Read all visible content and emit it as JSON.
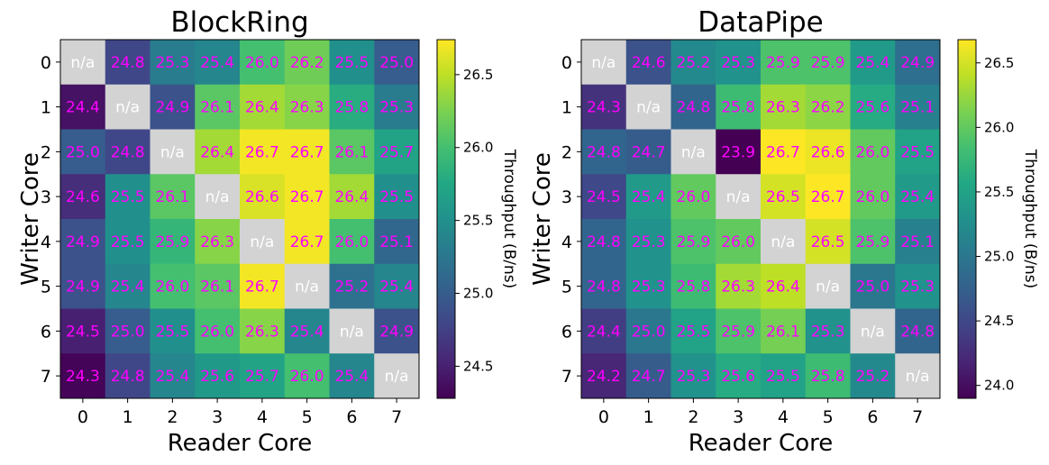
{
  "chart_data": [
    {
      "type": "heatmap",
      "title": "BlockRing",
      "xlabel": "Reader Core",
      "ylabel": "Writer Core",
      "x_categories": [
        "0",
        "1",
        "2",
        "3",
        "4",
        "5",
        "6",
        "7"
      ],
      "y_categories": [
        "0",
        "1",
        "2",
        "3",
        "4",
        "5",
        "6",
        "7"
      ],
      "values": [
        [
          null,
          24.8,
          25.3,
          25.4,
          26.0,
          26.2,
          25.5,
          25.0
        ],
        [
          24.4,
          null,
          24.9,
          26.1,
          26.4,
          26.3,
          25.8,
          25.3
        ],
        [
          25.0,
          24.8,
          null,
          26.4,
          26.7,
          26.7,
          26.1,
          25.7
        ],
        [
          24.6,
          25.5,
          26.1,
          null,
          26.6,
          26.7,
          26.4,
          25.5
        ],
        [
          24.9,
          25.5,
          25.9,
          26.3,
          null,
          26.7,
          26.0,
          25.1
        ],
        [
          24.9,
          25.4,
          26.0,
          26.1,
          26.7,
          null,
          25.2,
          25.4
        ],
        [
          24.5,
          25.0,
          25.5,
          26.0,
          26.3,
          25.4,
          null,
          24.9
        ],
        [
          24.3,
          24.8,
          25.4,
          25.6,
          25.7,
          26.0,
          25.4,
          null
        ]
      ],
      "cell_labels": [
        [
          "n/a",
          "24.8",
          "25.3",
          "25.4",
          "26.0",
          "26.2",
          "25.5",
          "25.0"
        ],
        [
          "24.4",
          "n/a",
          "24.9",
          "26.1",
          "26.4",
          "26.3",
          "25.8",
          "25.3"
        ],
        [
          "25.0",
          "24.8",
          "n/a",
          "26.4",
          "26.7",
          "26.7",
          "26.1",
          "25.7"
        ],
        [
          "24.6",
          "25.5",
          "26.1",
          "n/a",
          "26.6",
          "26.7",
          "26.4",
          "25.5"
        ],
        [
          "24.9",
          "25.5",
          "25.9",
          "26.3",
          "n/a",
          "26.7",
          "26.0",
          "25.1"
        ],
        [
          "24.9",
          "25.4",
          "26.0",
          "26.1",
          "26.7",
          "n/a",
          "25.2",
          "25.4"
        ],
        [
          "24.5",
          "25.0",
          "25.5",
          "26.0",
          "26.3",
          "25.4",
          "n/a",
          "24.9"
        ],
        [
          "24.3",
          "24.8",
          "25.4",
          "25.6",
          "25.7",
          "26.0",
          "25.4",
          "n/a"
        ]
      ],
      "colorbar": {
        "label": "Throughput (B/ns)",
        "range": [
          24.28,
          26.74
        ],
        "ticks": [
          24.5,
          25.0,
          25.5,
          26.0,
          26.5
        ],
        "tick_labels": [
          "24.5",
          "25.0",
          "25.5",
          "26.0",
          "26.5"
        ]
      },
      "colormap": "viridis",
      "na_color": "#d3d3d3",
      "value_label_color": "#ff00ff",
      "na_label_color": "#ffffff"
    },
    {
      "type": "heatmap",
      "title": "DataPipe",
      "xlabel": "Reader Core",
      "ylabel": "Writer Core",
      "x_categories": [
        "0",
        "1",
        "2",
        "3",
        "4",
        "5",
        "6",
        "7"
      ],
      "y_categories": [
        "0",
        "1",
        "2",
        "3",
        "4",
        "5",
        "6",
        "7"
      ],
      "values": [
        [
          null,
          24.6,
          25.2,
          25.3,
          25.9,
          25.9,
          25.4,
          24.9
        ],
        [
          24.3,
          null,
          24.8,
          25.8,
          26.3,
          26.2,
          25.6,
          25.1
        ],
        [
          24.8,
          24.7,
          null,
          23.9,
          26.7,
          26.6,
          26.0,
          25.5
        ],
        [
          24.5,
          25.4,
          26.0,
          null,
          26.5,
          26.7,
          26.0,
          25.4
        ],
        [
          24.8,
          25.3,
          25.9,
          26.0,
          null,
          26.5,
          25.9,
          25.1
        ],
        [
          24.8,
          25.3,
          25.8,
          26.3,
          26.4,
          null,
          25.0,
          25.3
        ],
        [
          24.4,
          25.0,
          25.5,
          25.9,
          26.1,
          25.3,
          null,
          24.8
        ],
        [
          24.2,
          24.7,
          25.3,
          25.6,
          25.5,
          25.8,
          25.2,
          null
        ]
      ],
      "cell_labels": [
        [
          "n/a",
          "24.6",
          "25.2",
          "25.3",
          "25.9",
          "25.9",
          "25.4",
          "24.9"
        ],
        [
          "24.3",
          "n/a",
          "24.8",
          "25.8",
          "26.3",
          "26.2",
          "25.6",
          "25.1"
        ],
        [
          "24.8",
          "24.7",
          "n/a",
          "23.9",
          "26.7",
          "26.6",
          "26.0",
          "25.5"
        ],
        [
          "24.5",
          "25.4",
          "26.0",
          "n/a",
          "26.5",
          "26.7",
          "26.0",
          "25.4"
        ],
        [
          "24.8",
          "25.3",
          "25.9",
          "26.0",
          "n/a",
          "26.5",
          "25.9",
          "25.1"
        ],
        [
          "24.8",
          "25.3",
          "25.8",
          "26.3",
          "26.4",
          "n/a",
          "25.0",
          "25.3"
        ],
        [
          "24.4",
          "25.0",
          "25.5",
          "25.9",
          "26.1",
          "25.3",
          "n/a",
          "24.8"
        ],
        [
          "24.2",
          "24.7",
          "25.3",
          "25.6",
          "25.5",
          "25.8",
          "25.2",
          "n/a"
        ]
      ],
      "colorbar": {
        "label": "Throughput (B/ns)",
        "range": [
          23.9,
          26.68
        ],
        "ticks": [
          24.0,
          24.5,
          25.0,
          25.5,
          26.0,
          26.5
        ],
        "tick_labels": [
          "24.0",
          "24.5",
          "25.0",
          "25.5",
          "26.0",
          "26.5"
        ]
      },
      "colormap": "viridis",
      "na_color": "#d3d3d3",
      "value_label_color": "#ff00ff",
      "na_label_color": "#ffffff"
    }
  ]
}
